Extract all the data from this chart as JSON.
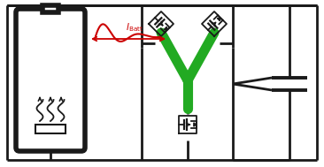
{
  "bg_color": "#ffffff",
  "line_color": "#1a1a1a",
  "green_color": "#22aa22",
  "red_color": "#cc0000",
  "fig_width": 3.66,
  "fig_height": 1.89,
  "dpi": 100
}
